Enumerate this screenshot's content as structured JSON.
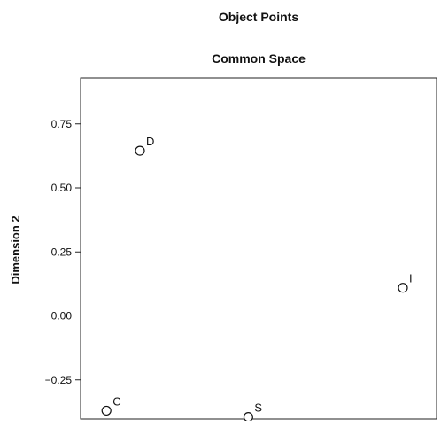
{
  "chart_data": {
    "type": "scatter",
    "title": "Object Points",
    "subtitle": "Common Space",
    "xlabel": "",
    "ylabel": "Dimension 2",
    "ylim": [
      -0.4,
      0.9
    ],
    "xlim": [
      0,
      1
    ],
    "yticks": [
      -0.25,
      0.0,
      0.25,
      0.5,
      0.75
    ],
    "ytick_labels": [
      "−0.25",
      "0.00",
      "0.25",
      "0.50",
      "0.75"
    ],
    "grid": false,
    "points": [
      {
        "label": "D",
        "x": 0.15,
        "y": 0.645
      },
      {
        "label": "I",
        "x": 0.975,
        "y": 0.11
      },
      {
        "label": "C",
        "x": 0.045,
        "y": -0.37
      },
      {
        "label": "S",
        "x": 0.49,
        "y": -0.395
      }
    ]
  }
}
